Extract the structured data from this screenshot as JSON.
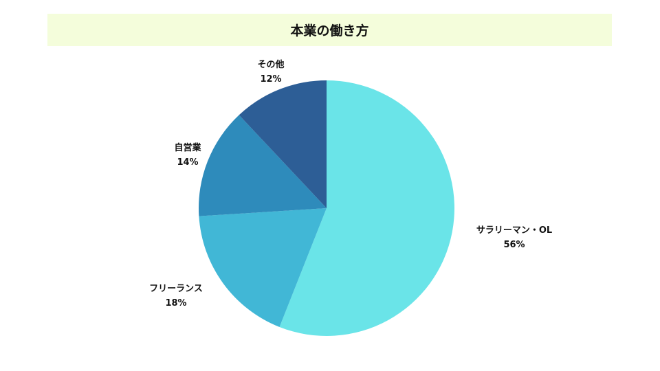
{
  "chart_data": {
    "type": "pie",
    "title": "本業の働き方",
    "title_background": "#f4fddb",
    "slices": [
      {
        "label": "サラリーマン・OL",
        "value": 56,
        "value_label": "56%",
        "color": "#6ae4e8"
      },
      {
        "label": "フリーランス",
        "value": 18,
        "value_label": "18%",
        "color": "#41b7d6"
      },
      {
        "label": "自営業",
        "value": 14,
        "value_label": "14%",
        "color": "#2e8bbb"
      },
      {
        "label": "その他",
        "value": 12,
        "value_label": "12%",
        "color": "#2d5e96"
      }
    ],
    "start": "top",
    "direction": "clockwise",
    "legend": "none"
  }
}
